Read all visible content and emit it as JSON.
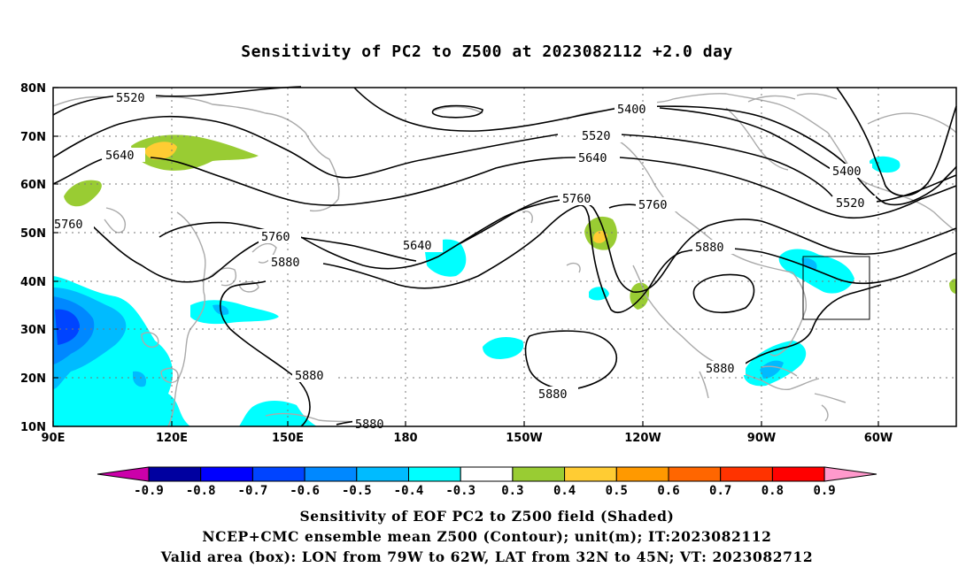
{
  "title": "Sensitivity of PC2 to Z500 at 2023082112 +2.0 day",
  "map": {
    "lat_labels": [
      "80N",
      "70N",
      "60N",
      "50N",
      "40N",
      "30N",
      "20N",
      "10N"
    ],
    "lon_labels": [
      "90E",
      "120E",
      "150E",
      "180",
      "150W",
      "120W",
      "90W",
      "60W"
    ],
    "contour_labels": [
      {
        "id": "c5520a",
        "text": "5520"
      },
      {
        "id": "c5400a",
        "text": "5400"
      },
      {
        "id": "c5520b",
        "text": "5520"
      },
      {
        "id": "c5640a",
        "text": "5640"
      },
      {
        "id": "c5640b",
        "text": "5640"
      },
      {
        "id": "c5400b",
        "text": "5400"
      },
      {
        "id": "c5520c",
        "text": "5520"
      },
      {
        "id": "c5760a",
        "text": "5760"
      },
      {
        "id": "c5760b",
        "text": "5760"
      },
      {
        "id": "c5760c",
        "text": "5760"
      },
      {
        "id": "c5760d",
        "text": "5760"
      },
      {
        "id": "c5640c",
        "text": "5640"
      },
      {
        "id": "c5880a",
        "text": "5880"
      },
      {
        "id": "c5880b",
        "text": "5880"
      },
      {
        "id": "c5880c",
        "text": "5880"
      },
      {
        "id": "c5880d",
        "text": "5880"
      },
      {
        "id": "c5880e",
        "text": "5880"
      },
      {
        "id": "c5880f",
        "text": "5880"
      }
    ]
  },
  "colorbar": {
    "labels": [
      "-0.9",
      "-0.8",
      "-0.7",
      "-0.6",
      "-0.5",
      "-0.4",
      "-0.3",
      "0.3",
      "0.4",
      "0.5",
      "0.6",
      "0.7",
      "0.8",
      "0.9"
    ],
    "colors": [
      "#cc00aa",
      "#0000a0",
      "#0000ff",
      "#0044ff",
      "#0088ff",
      "#00bbff",
      "#00ffff",
      "#ffffff",
      "#99cc33",
      "#ffcc33",
      "#ff9900",
      "#ff6600",
      "#ff3300",
      "#ff0000",
      "#ff99cc"
    ]
  },
  "captions": {
    "line1": "Sensitivity of EOF PC2 to Z500 field (Shaded)",
    "line2": "NCEP+CMC ensemble mean Z500 (Contour); unit(m); IT:2023082112",
    "line3": "Valid area (box): LON from 79W to 62W, LAT from 32N to 45N; VT: 2023082712"
  }
}
